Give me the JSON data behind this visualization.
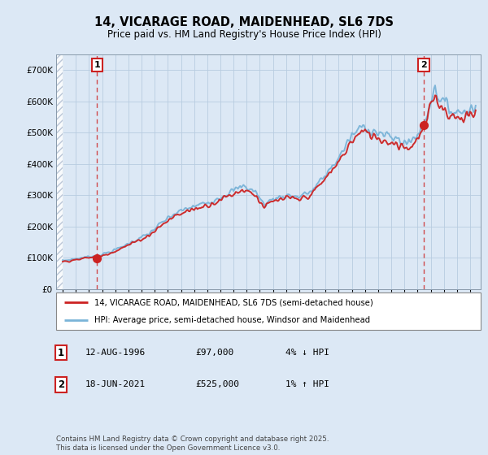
{
  "title": "14, VICARAGE ROAD, MAIDENHEAD, SL6 7DS",
  "subtitle": "Price paid vs. HM Land Registry's House Price Index (HPI)",
  "legend_line1": "14, VICARAGE ROAD, MAIDENHEAD, SL6 7DS (semi-detached house)",
  "legend_line2": "HPI: Average price, semi-detached house, Windsor and Maidenhead",
  "annotation1_date": "12-AUG-1996",
  "annotation1_price": "£97,000",
  "annotation1_hpi": "4% ↓ HPI",
  "annotation2_date": "18-JUN-2021",
  "annotation2_price": "£525,000",
  "annotation2_hpi": "1% ↑ HPI",
  "footnote": "Contains HM Land Registry data © Crown copyright and database right 2025.\nThis data is licensed under the Open Government Licence v3.0.",
  "sale1_year": 1996.62,
  "sale1_price": 97000,
  "sale2_year": 2021.46,
  "sale2_price": 525000,
  "hpi_color": "#7ab4d8",
  "price_color": "#cc2222",
  "ylim_max": 750000,
  "xlim_min": 1993.5,
  "xlim_max": 2025.8,
  "bg_color": "#dce8f5",
  "hatch_end": 1994.0,
  "yticks": [
    0,
    100000,
    200000,
    300000,
    400000,
    500000,
    600000,
    700000
  ]
}
